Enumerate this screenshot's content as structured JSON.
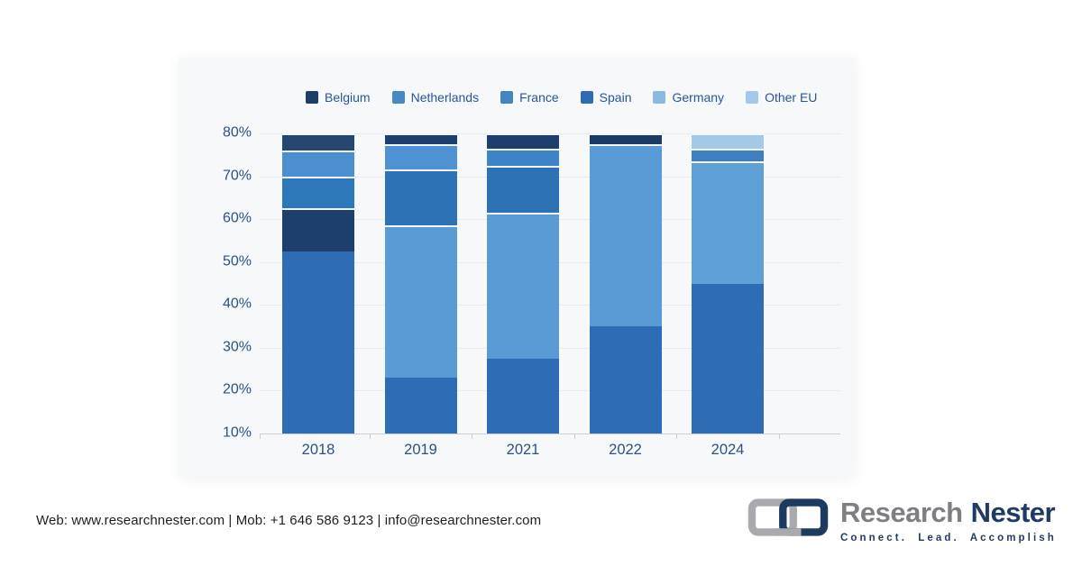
{
  "page": {
    "background": "#ffffff",
    "panel_background": "#f6f8fa"
  },
  "chart_data": {
    "type": "bar",
    "stacked": true,
    "title": "",
    "xlabel": "",
    "ylabel": "",
    "grid": true,
    "legend_position": "top",
    "categories": [
      "2018",
      "2019",
      "2021",
      "2022",
      "2024"
    ],
    "y_axis": {
      "min": 10,
      "max": 80,
      "tick_labels": [
        "80%",
        "70%",
        "60%",
        "50%",
        "40%",
        "30%",
        "20%",
        "10%"
      ]
    },
    "legend": [
      {
        "label": "Belgium",
        "color": "#1f3e66"
      },
      {
        "label": "Netherlands",
        "color": "#4689c6"
      },
      {
        "label": "France",
        "color": "#4285c2"
      },
      {
        "label": "Spain",
        "color": "#2e6cb3"
      },
      {
        "label": "Germany",
        "color": "#8db9e0"
      },
      {
        "label": "Other EU",
        "color": "#a5c9e9"
      }
    ],
    "bars": [
      {
        "category": "2018",
        "segments": [
          {
            "label": "Spain",
            "from": 10,
            "to": 52.5,
            "color": "#2e6db5"
          },
          {
            "label": "Belgium",
            "from": 52.5,
            "to": 62.5,
            "color": "#1e3f6e"
          },
          {
            "label": "France",
            "from": 62.5,
            "to": 70,
            "color": "#2f77bb"
          },
          {
            "label": "Netherlands",
            "from": 70,
            "to": 76,
            "color": "#4b8fd0"
          },
          {
            "label": "Belgium",
            "from": 76,
            "to": 80,
            "color": "#24466f"
          }
        ]
      },
      {
        "category": "2019",
        "segments": [
          {
            "label": "Spain",
            "from": 10,
            "to": 23,
            "color": "#2e6db5"
          },
          {
            "label": "France",
            "from": 23,
            "to": 58.5,
            "color": "#5b9bd5"
          },
          {
            "label": "Netherlands",
            "from": 58.5,
            "to": 71.5,
            "color": "#2e72b6"
          },
          {
            "label": "Germany",
            "from": 71.5,
            "to": 77.5,
            "color": "#4e92d4"
          },
          {
            "label": "Belgium",
            "from": 77.5,
            "to": 80,
            "color": "#1e3f6e"
          }
        ]
      },
      {
        "category": "2021",
        "segments": [
          {
            "label": "Spain",
            "from": 10,
            "to": 27.5,
            "color": "#2e6db5"
          },
          {
            "label": "France",
            "from": 27.5,
            "to": 61.5,
            "color": "#5b9bd5"
          },
          {
            "label": "Netherlands",
            "from": 61.5,
            "to": 72.5,
            "color": "#2e72b6"
          },
          {
            "label": "Germany",
            "from": 72.5,
            "to": 76.5,
            "color": "#3f84c6"
          },
          {
            "label": "Belgium",
            "from": 76.5,
            "to": 80,
            "color": "#1e3f6e"
          }
        ]
      },
      {
        "category": "2022",
        "segments": [
          {
            "label": "Spain",
            "from": 10,
            "to": 35,
            "color": "#2e6db5"
          },
          {
            "label": "France",
            "from": 35,
            "to": 77.5,
            "color": "#5b9bd5"
          },
          {
            "label": "Belgium",
            "from": 77.5,
            "to": 80,
            "color": "#1c3a66"
          }
        ]
      },
      {
        "category": "2024",
        "segments": [
          {
            "label": "Spain",
            "from": 10,
            "to": 45,
            "color": "#2e6db5"
          },
          {
            "label": "France",
            "from": 45,
            "to": 73.5,
            "color": "#5fa0d6"
          },
          {
            "label": "Netherlands",
            "from": 73.5,
            "to": 76.5,
            "color": "#3d7fc1"
          },
          {
            "label": "Other EU",
            "from": 76.5,
            "to": 80,
            "color": "#a4c8e8"
          }
        ]
      }
    ]
  },
  "footer": {
    "contact": "Web: www.researchnester.com | Mob: +1 646 586 9123 | info@researchnester.com"
  },
  "logo": {
    "research": "Research",
    "nester": "Nester",
    "tagline": "Connect. Lead. Accomplish",
    "research_color": "#7d7f82",
    "nester_color": "#1e3a66",
    "icon_gray": "#a8aaad",
    "icon_navy": "#1e3a5f"
  }
}
